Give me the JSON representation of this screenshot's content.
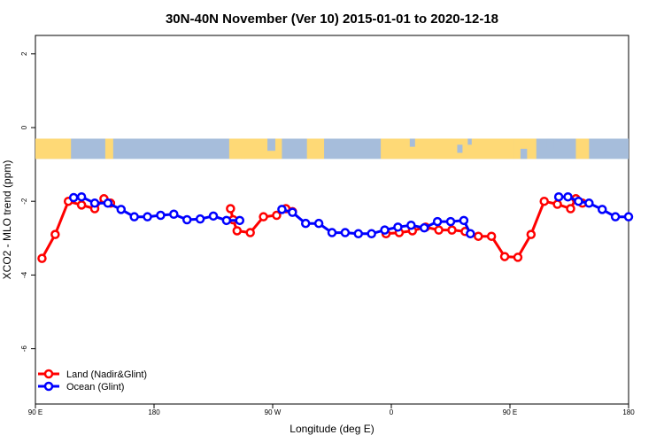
{
  "chart_data": {
    "type": "line",
    "title": "30N-40N November (Ver 10)   2015-01-01 to 2020-12-18",
    "xlabel": "Longitude (deg E)",
    "ylabel": "XCO2 - MLO trend (ppm)",
    "xlim": [
      90,
      540
    ],
    "ylim": [
      -7.5,
      2.5
    ],
    "x_ticks": [
      {
        "value": 90,
        "label": "90 E"
      },
      {
        "value": 180,
        "label": "180"
      },
      {
        "value": 270,
        "label": "90 W"
      },
      {
        "value": 360,
        "label": "0"
      },
      {
        "value": 450,
        "label": "90 E"
      },
      {
        "value": 540,
        "label": "180"
      }
    ],
    "y_ticks": [
      {
        "value": 2,
        "label": "2"
      },
      {
        "value": 0,
        "label": "0"
      },
      {
        "value": -2,
        "label": "-2"
      },
      {
        "value": -4,
        "label": "-4"
      },
      {
        "value": -6,
        "label": "-6"
      }
    ],
    "grid": false,
    "legend_position": "bottom-left",
    "map_strip": {
      "y_top": -0.3,
      "y_bottom": -0.85,
      "ocean_color": "#a6bddb",
      "land_color": "#fed976"
    },
    "series": [
      {
        "name": "Land (Nadir&Glint)",
        "color": "#ff0000",
        "points": [
          {
            "x": 95,
            "y": -3.55
          },
          {
            "x": 105,
            "y": -2.9
          },
          {
            "x": 115,
            "y": -2.0
          },
          {
            "x": 125,
            "y": -2.1
          },
          {
            "x": 135,
            "y": -2.2
          },
          {
            "x": 142,
            "y": -1.93
          },
          {
            "x": 147,
            "y": -2.05
          },
          {
            "x": 147,
            "y": null
          },
          {
            "x": 238,
            "y": -2.2
          },
          {
            "x": 240,
            "y": -2.5
          },
          {
            "x": 243,
            "y": -2.8
          },
          {
            "x": 253,
            "y": -2.85
          },
          {
            "x": 263,
            "y": -2.42
          },
          {
            "x": 273,
            "y": -2.38
          },
          {
            "x": 280,
            "y": -2.2
          },
          {
            "x": 285,
            "y": -2.28
          },
          {
            "x": 285,
            "y": null
          },
          {
            "x": 356,
            "y": -2.88
          },
          {
            "x": 366,
            "y": -2.85
          },
          {
            "x": 376,
            "y": -2.8
          },
          {
            "x": 386,
            "y": -2.7
          },
          {
            "x": 396,
            "y": -2.78
          },
          {
            "x": 406,
            "y": -2.78
          },
          {
            "x": 416,
            "y": -2.82
          },
          {
            "x": 426,
            "y": -2.95
          },
          {
            "x": 436,
            "y": -2.95
          },
          {
            "x": 446,
            "y": -3.5
          },
          {
            "x": 456,
            "y": -3.52
          },
          {
            "x": 466,
            "y": -2.9
          },
          {
            "x": 476,
            "y": -2.0
          },
          {
            "x": 486,
            "y": -2.08
          },
          {
            "x": 496,
            "y": -2.2
          },
          {
            "x": 500,
            "y": -1.93
          },
          {
            "x": 505,
            "y": -2.05
          }
        ]
      },
      {
        "name": "Ocean (Glint)",
        "color": "#0000ff",
        "points": [
          {
            "x": 119,
            "y": -1.9
          },
          {
            "x": 125,
            "y": -1.88
          },
          {
            "x": 135,
            "y": -2.05
          },
          {
            "x": 145,
            "y": -2.05
          },
          {
            "x": 155,
            "y": -2.22
          },
          {
            "x": 165,
            "y": -2.42
          },
          {
            "x": 175,
            "y": -2.42
          },
          {
            "x": 185,
            "y": -2.38
          },
          {
            "x": 195,
            "y": -2.35
          },
          {
            "x": 205,
            "y": -2.5
          },
          {
            "x": 215,
            "y": -2.48
          },
          {
            "x": 225,
            "y": -2.4
          },
          {
            "x": 235,
            "y": -2.52
          },
          {
            "x": 245,
            "y": -2.52
          },
          {
            "x": 245,
            "y": null
          },
          {
            "x": 277,
            "y": -2.22
          },
          {
            "x": 285,
            "y": -2.3
          },
          {
            "x": 295,
            "y": -2.6
          },
          {
            "x": 305,
            "y": -2.6
          },
          {
            "x": 315,
            "y": -2.85
          },
          {
            "x": 325,
            "y": -2.85
          },
          {
            "x": 335,
            "y": -2.88
          },
          {
            "x": 345,
            "y": -2.88
          },
          {
            "x": 355,
            "y": -2.78
          },
          {
            "x": 365,
            "y": -2.7
          },
          {
            "x": 375,
            "y": -2.65
          },
          {
            "x": 385,
            "y": -2.72
          },
          {
            "x": 395,
            "y": -2.55
          },
          {
            "x": 405,
            "y": -2.55
          },
          {
            "x": 415,
            "y": -2.52
          },
          {
            "x": 420,
            "y": -2.88
          },
          {
            "x": 420,
            "y": null
          },
          {
            "x": 487,
            "y": -1.88
          },
          {
            "x": 494,
            "y": -1.88
          },
          {
            "x": 502,
            "y": -2.0
          },
          {
            "x": 510,
            "y": -2.05
          },
          {
            "x": 520,
            "y": -2.22
          },
          {
            "x": 530,
            "y": -2.42
          },
          {
            "x": 540,
            "y": -2.42
          }
        ]
      }
    ]
  }
}
